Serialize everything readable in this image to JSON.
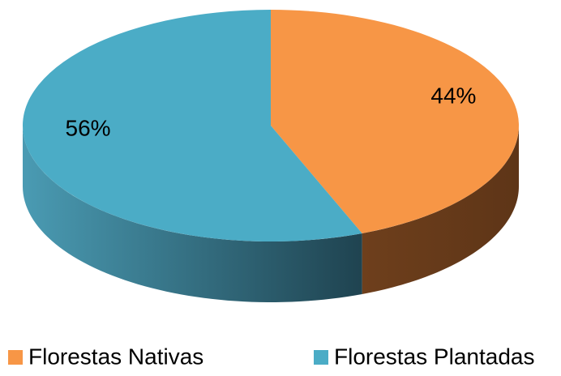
{
  "chart_data": {
    "type": "pie",
    "categories": [
      "Florestas Nativas",
      "Florestas Plantadas"
    ],
    "values": [
      44,
      56
    ],
    "value_labels": [
      "44%",
      "56%"
    ],
    "colors": [
      "#f79646",
      "#4bacc6"
    ]
  }
}
